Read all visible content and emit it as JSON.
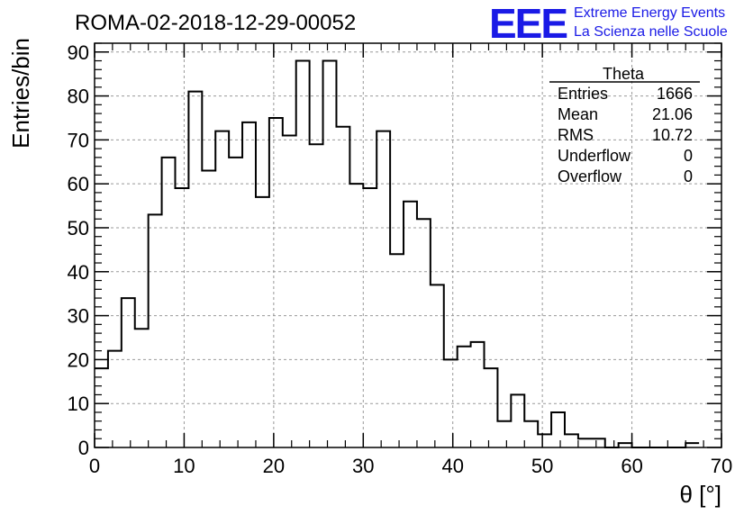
{
  "logo": {
    "mark": "EEE",
    "line1": "Extreme Energy Events",
    "line2": "La Scienza nelle Scuole",
    "color": "#1a1ae6"
  },
  "chart_data": {
    "type": "histogram",
    "title": "ROMA-02-2018-12-29-00052",
    "xlabel": "θ [°]",
    "ylabel": "Entries/bin",
    "xlim": [
      0,
      70
    ],
    "ylim": [
      0,
      92
    ],
    "xticks": [
      0,
      10,
      20,
      30,
      40,
      50,
      60,
      70
    ],
    "yticks": [
      0,
      10,
      20,
      30,
      40,
      50,
      60,
      70,
      80,
      90
    ],
    "grid": true,
    "bin_width": 1.5,
    "bin_edges_start": 0,
    "values": [
      18,
      22,
      34,
      27,
      53,
      66,
      59,
      81,
      63,
      72,
      66,
      74,
      57,
      75,
      71,
      88,
      69,
      88,
      73,
      60,
      59,
      72,
      44,
      56,
      52,
      37,
      20,
      23,
      24,
      18,
      6,
      12,
      6,
      3,
      8,
      3,
      2,
      2,
      0,
      1,
      0,
      0,
      0,
      0,
      1
    ],
    "stats": {
      "name": "Theta",
      "rows": [
        {
          "label": "Entries",
          "value": "1666"
        },
        {
          "label": "Mean",
          "value": "21.06"
        },
        {
          "label": "RMS",
          "value": "10.72"
        },
        {
          "label": "Underflow",
          "value": "0"
        },
        {
          "label": "Overflow",
          "value": "0"
        }
      ]
    }
  }
}
